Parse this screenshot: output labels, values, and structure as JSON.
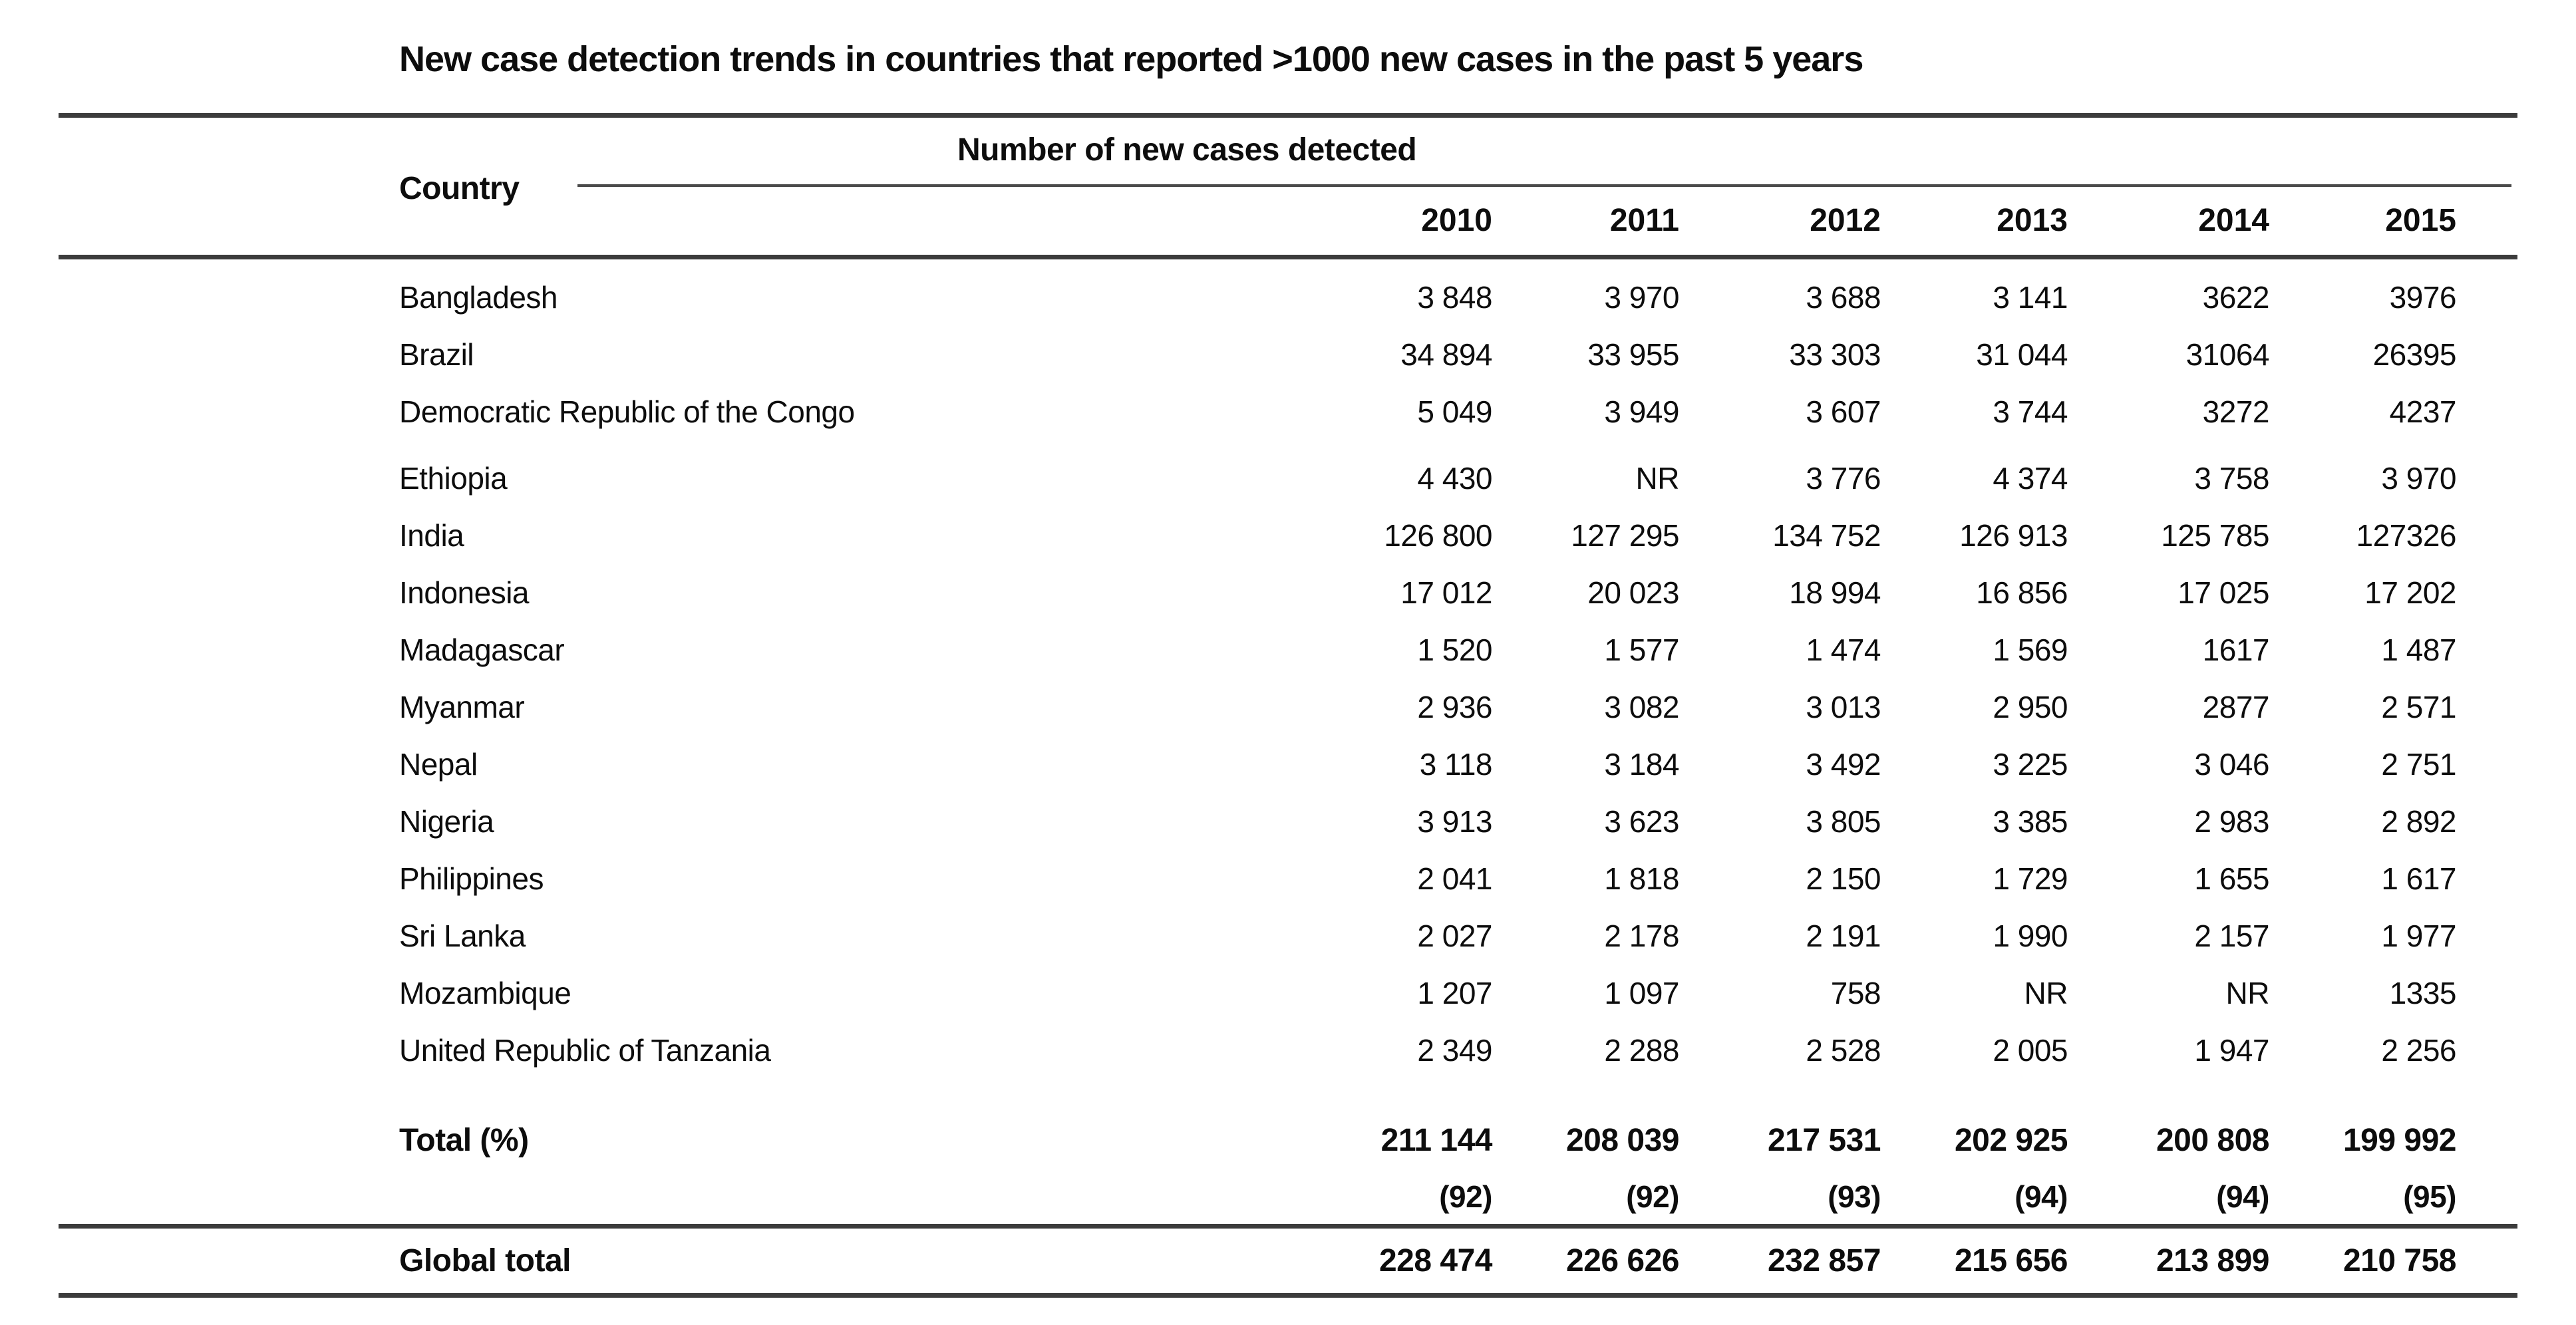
{
  "title": "New case detection trends in countries that reported >1000 new cases in the past 5 years",
  "table": {
    "group_header": "Number of new cases detected",
    "country_header": "Country",
    "year_headers": [
      "2010",
      "2011",
      "2012",
      "2013",
      "2014",
      "2015"
    ],
    "rows": [
      {
        "country": "Bangladesh",
        "values": [
          "3 848",
          "3 970",
          "3 688",
          "3 141",
          "3622",
          "3976"
        ]
      },
      {
        "country": "Brazil",
        "values": [
          "34 894",
          "33 955",
          "33 303",
          "31 044",
          "31064",
          "26395"
        ]
      },
      {
        "country": "Democratic Republic of the Congo",
        "values": [
          "5 049",
          "3 949",
          "3 607",
          "3 744",
          "3272",
          "4237"
        ]
      },
      {
        "country": "Ethiopia",
        "values": [
          "4 430",
          "NR",
          "3 776",
          "4 374",
          "3 758",
          "3 970"
        ],
        "group_start": true
      },
      {
        "country": "India",
        "values": [
          "126 800",
          "127 295",
          "134 752",
          "126 913",
          "125 785",
          "127326"
        ]
      },
      {
        "country": "Indonesia",
        "values": [
          "17 012",
          "20 023",
          "18 994",
          "16 856",
          "17 025",
          "17 202"
        ]
      },
      {
        "country": "Madagascar",
        "values": [
          "1 520",
          "1 577",
          "1 474",
          "1 569",
          "1617",
          "1 487"
        ]
      },
      {
        "country": "Myanmar",
        "values": [
          "2 936",
          "3 082",
          "3 013",
          "2 950",
          "2877",
          "2 571"
        ]
      },
      {
        "country": "Nepal",
        "values": [
          "3 118",
          "3 184",
          "3 492",
          "3 225",
          "3 046",
          "2 751"
        ]
      },
      {
        "country": "Nigeria",
        "values": [
          "3 913",
          "3 623",
          "3 805",
          "3 385",
          "2 983",
          "2 892"
        ]
      },
      {
        "country": "Philippines",
        "values": [
          "2 041",
          "1 818",
          "2 150",
          "1 729",
          "1 655",
          "1 617"
        ]
      },
      {
        "country": "Sri Lanka",
        "values": [
          "2 027",
          "2 178",
          "2 191",
          "1 990",
          "2 157",
          "1 977"
        ]
      },
      {
        "country": "Mozambique",
        "values": [
          "1 207",
          "1 097",
          "758",
          "NR",
          "NR",
          "1335"
        ]
      },
      {
        "country": "United Republic of Tanzania",
        "values": [
          "2 349",
          "2 288",
          "2 528",
          "2 005",
          "1 947",
          "2 256"
        ]
      }
    ],
    "total_row": {
      "label": "Total (%)",
      "values": [
        "211 144",
        "208 039",
        "217 531",
        "202 925",
        "200 808",
        "199 992"
      ]
    },
    "percent_row": {
      "values": [
        "(92)",
        "(92)",
        "(93)",
        "(94)",
        "(94)",
        "(95)"
      ]
    },
    "global_row": {
      "label": "Global total",
      "values": [
        "228 474",
        "226 626",
        "232 857",
        "215 656",
        "213 899",
        "210 758"
      ]
    }
  }
}
